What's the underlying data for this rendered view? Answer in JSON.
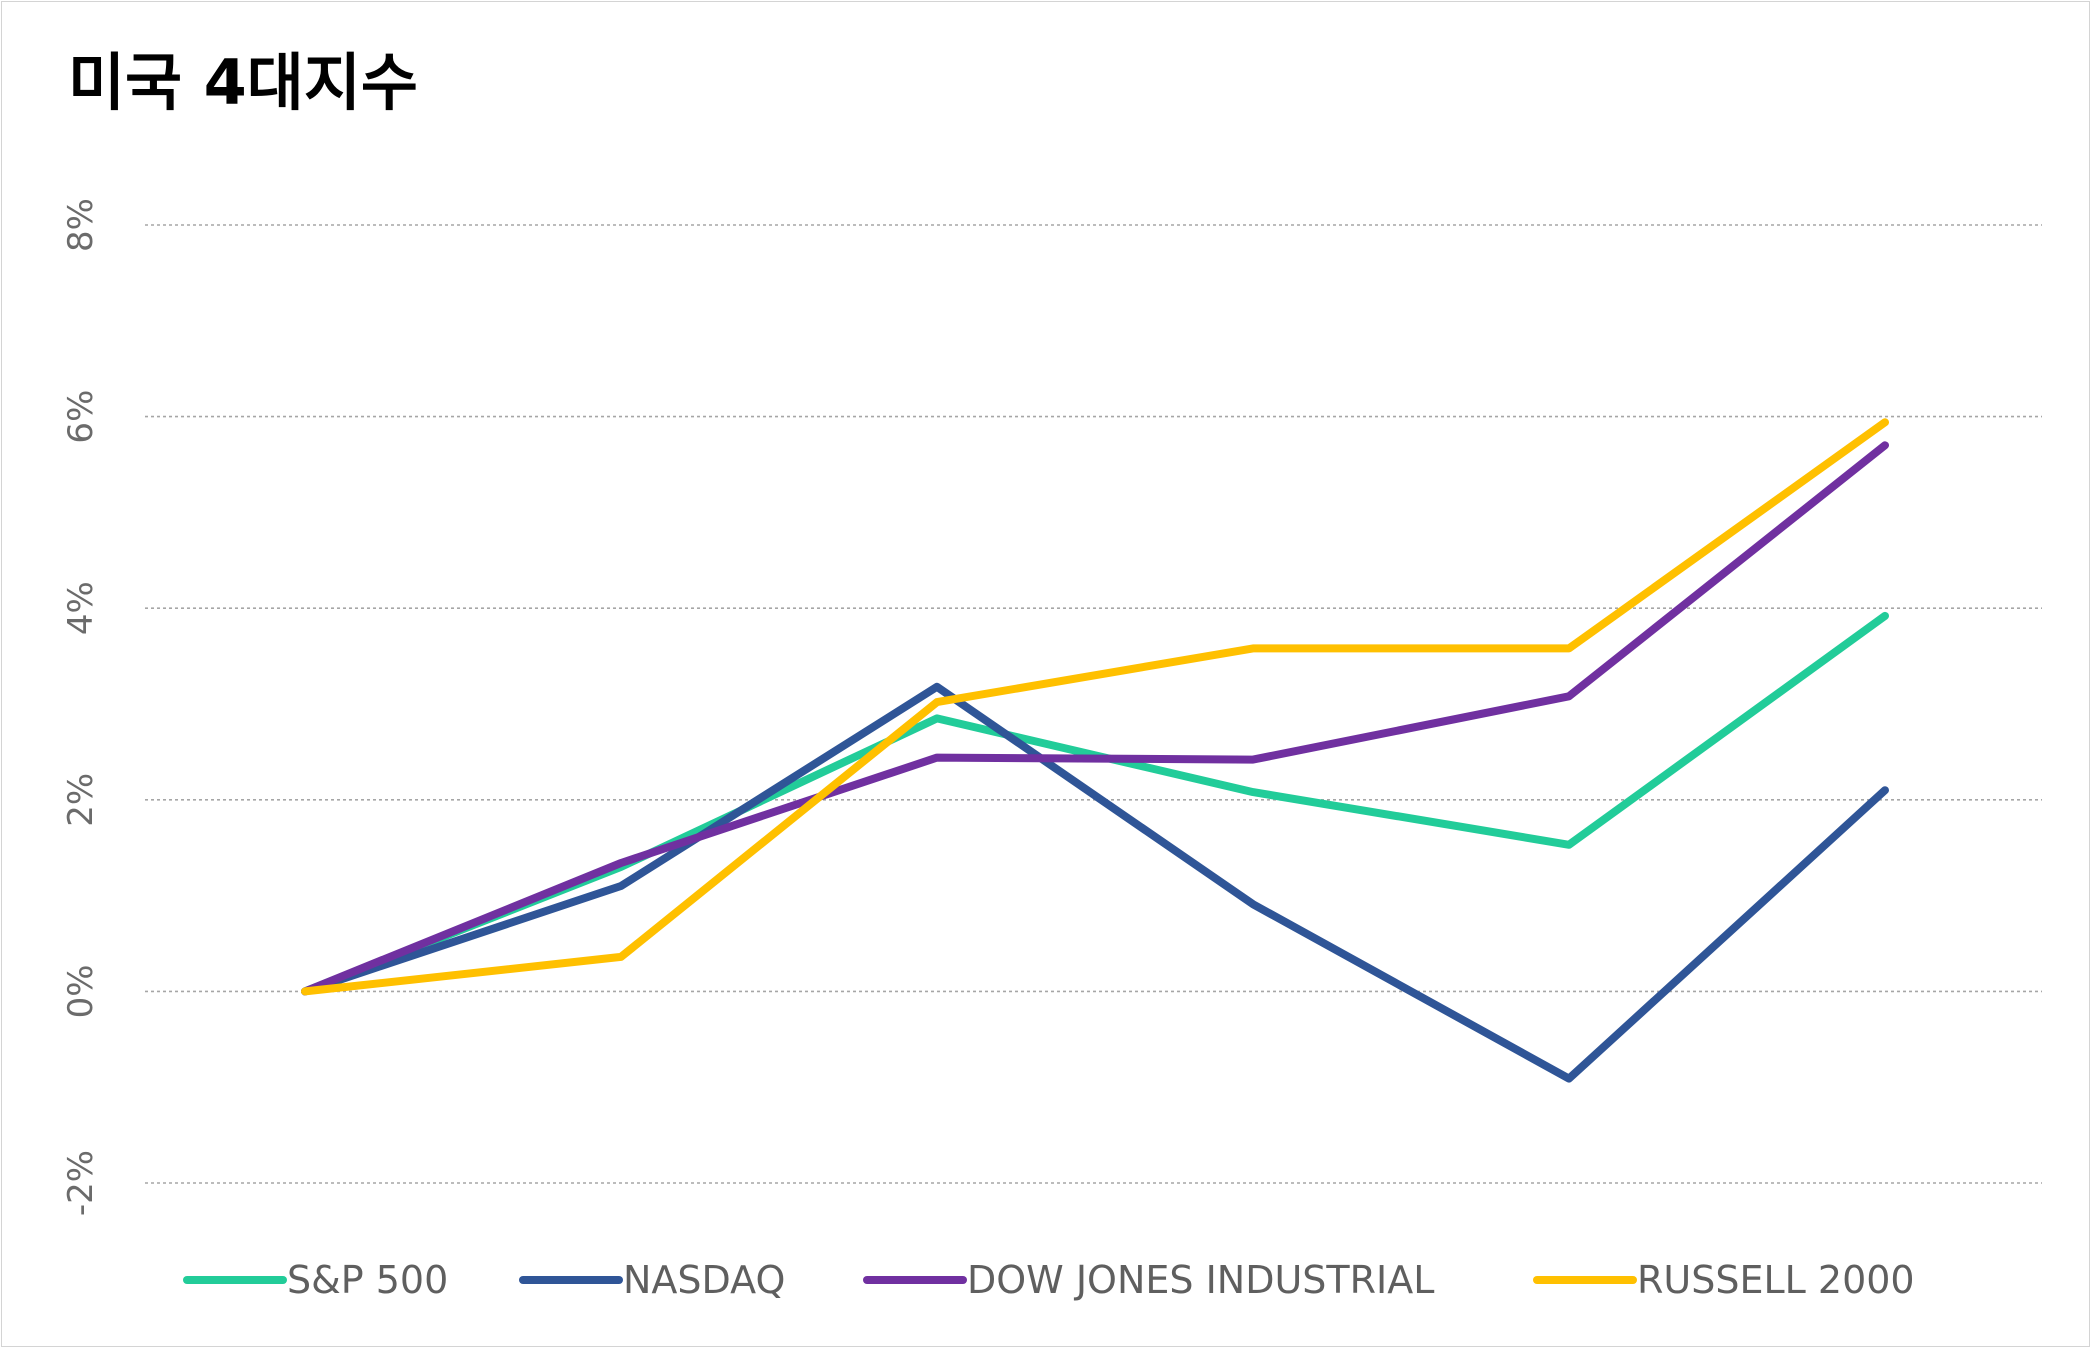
{
  "chart_data": {
    "type": "line",
    "title": "미국 4대지수",
    "xlabel": "",
    "ylabel": "",
    "x": [
      1,
      2,
      3,
      4,
      5,
      6
    ],
    "ylim": [
      -0.02,
      0.08
    ],
    "yticks": [
      -0.02,
      0,
      0.02,
      0.04,
      0.06,
      0.08
    ],
    "ytick_labels": [
      "-2%",
      "0%",
      "2%",
      "4%",
      "6%",
      "8%"
    ],
    "grid": true,
    "legend_position": "bottom",
    "series": [
      {
        "name": "S&P 500",
        "color": "#22CC99",
        "values": [
          0,
          0.013,
          0.0285,
          0.0208,
          0.0153,
          0.0392
        ]
      },
      {
        "name": "NASDAQ",
        "color": "#2F5597",
        "values": [
          0,
          0.011,
          0.0318,
          0.0091,
          -0.0091,
          0.021
        ]
      },
      {
        "name": "DOW JONES INDUSTRIAL",
        "color": "#7030A0",
        "values": [
          0,
          0.0134,
          0.0244,
          0.0242,
          0.0308,
          0.057
        ]
      },
      {
        "name": "RUSSELL 2000",
        "color": "#FFC000",
        "values": [
          0,
          0.0036,
          0.0302,
          0.0358,
          0.0358,
          0.0594
        ]
      }
    ]
  }
}
